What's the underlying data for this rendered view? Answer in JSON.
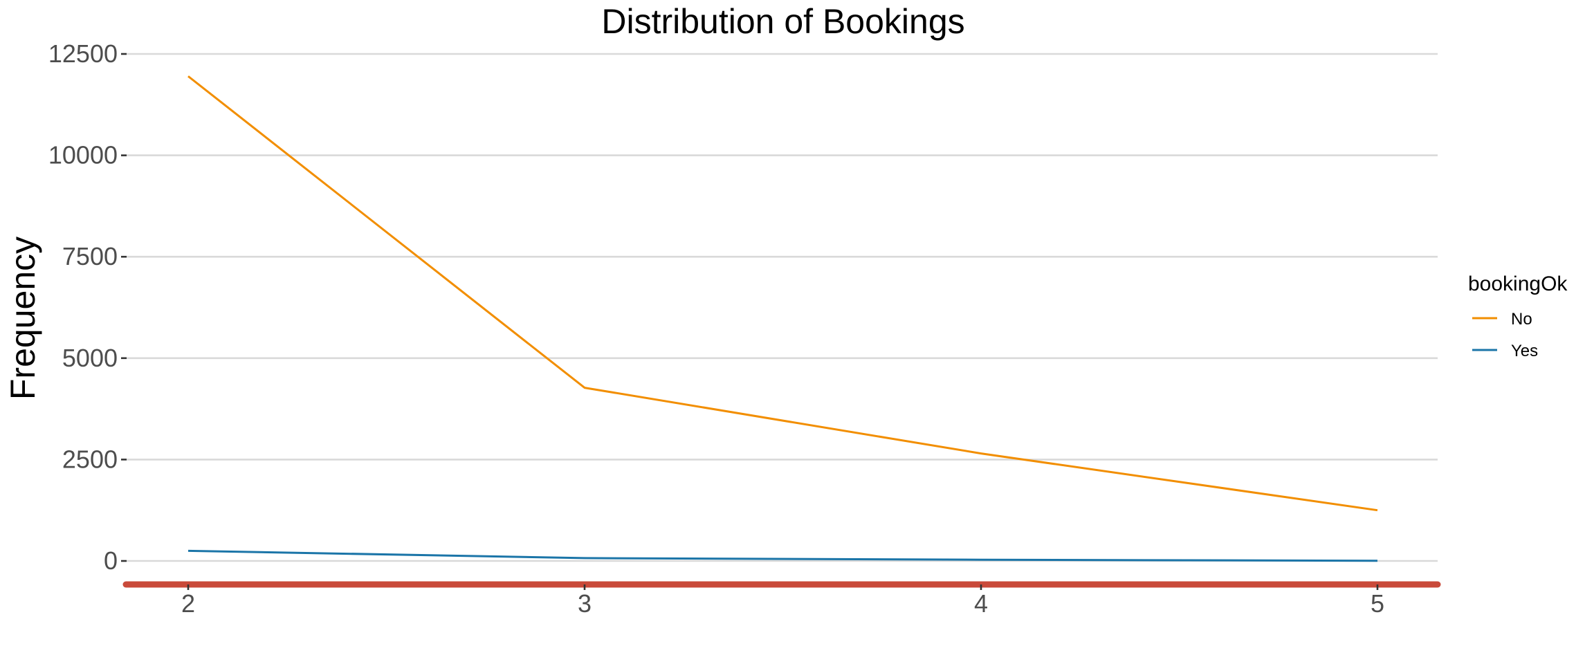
{
  "chart_data": {
    "type": "line",
    "title": "Distribution of Bookings",
    "xlabel": "",
    "ylabel": "Frequency",
    "x": [
      2,
      3,
      4,
      5
    ],
    "xlim": [
      1.84,
      5.16
    ],
    "ylim": [
      -600,
      12500
    ],
    "yticks": [
      0,
      2500,
      5000,
      7500,
      10000,
      12500
    ],
    "xticks": [
      2,
      3,
      4,
      5
    ],
    "grid": "horizontal",
    "legend": {
      "title": "bookingOk",
      "placement": "right"
    },
    "axis_line_color": "#c94a3a",
    "series": [
      {
        "name": "No",
        "color": "#f28e00",
        "values": [
          11950,
          4270,
          2650,
          1250
        ]
      },
      {
        "name": "Yes",
        "color": "#1b75a8",
        "values": [
          250,
          70,
          30,
          5
        ]
      }
    ]
  }
}
